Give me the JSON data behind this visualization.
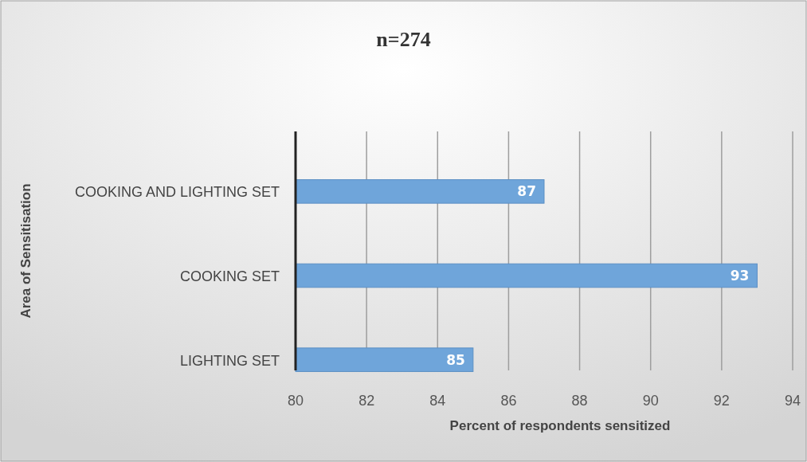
{
  "chart_data": {
    "type": "bar",
    "orientation": "horizontal",
    "title": "n=274",
    "xlabel": "Percent of respondents sensitized",
    "ylabel": "Area of Sensitisation",
    "categories": [
      "COOKING AND LIGHTING SET",
      "COOKING SET",
      "LIGHTING SET"
    ],
    "values": [
      87,
      93,
      85
    ],
    "color": "#6fa5da",
    "xlim": [
      80,
      94
    ],
    "xticks": [
      80,
      82,
      84,
      86,
      88,
      90,
      92,
      94
    ],
    "grid": "x",
    "data_labels": true
  }
}
